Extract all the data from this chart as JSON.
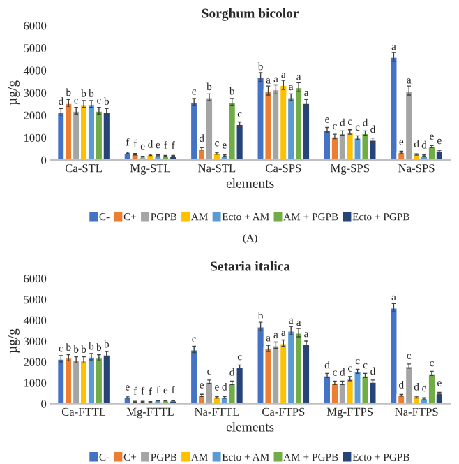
{
  "chart_data": [
    {
      "type": "bar",
      "title": "Sorghum bicolor",
      "xlabel": "elements",
      "ylabel": "µg/g",
      "categories": [
        "Ca-STL",
        "Mg-STL",
        "Na-STL",
        "Ca-SPS",
        "Mg-SPS",
        "Na-SPS"
      ],
      "ylim": [
        0,
        6000
      ],
      "yticks": [
        0,
        1000,
        2000,
        3000,
        4000,
        5000,
        6000
      ],
      "grid": false,
      "legend": "bottom",
      "annotations": [
        "(A)"
      ],
      "series": [
        {
          "name": "C-",
          "color": "#4472c4",
          "values": [
            2150,
            320,
            2600,
            3700,
            1350,
            4600
          ],
          "errors": [
            150,
            30,
            150,
            200,
            100,
            200
          ],
          "value_labels": [
            "d",
            "f",
            "c",
            "b",
            "e",
            "a"
          ]
        },
        {
          "name": "C+",
          "color": "#ed7d31",
          "values": [
            2550,
            260,
            500,
            3100,
            1050,
            350
          ],
          "errors": [
            150,
            30,
            50,
            200,
            100,
            40
          ],
          "value_labels": [
            "b",
            "f",
            "d",
            "a",
            "c",
            "e"
          ]
        },
        {
          "name": "PGPB",
          "color": "#a5a5a5",
          "values": [
            2200,
            150,
            2800,
            3150,
            1200,
            3100
          ],
          "errors": [
            150,
            20,
            150,
            200,
            100,
            200
          ],
          "value_labels": [
            "c",
            "e",
            "b",
            "a",
            "d",
            "a"
          ]
        },
        {
          "name": "AM",
          "color": "#ffc000",
          "values": [
            2500,
            230,
            300,
            3350,
            1250,
            250
          ],
          "errors": [
            150,
            30,
            40,
            200,
            100,
            30
          ],
          "value_labels": [
            "b",
            "d",
            "c",
            "a",
            "c",
            "d"
          ]
        },
        {
          "name": "Ecto + AM",
          "color": "#5b9bd5",
          "values": [
            2500,
            210,
            200,
            2800,
            1000,
            200
          ],
          "errors": [
            150,
            20,
            30,
            150,
            80,
            30
          ],
          "value_labels": [
            "b",
            "e",
            "e",
            "a",
            "c",
            "d"
          ]
        },
        {
          "name": "AM + PGPB",
          "color": "#70ad47",
          "values": [
            2200,
            190,
            2600,
            3250,
            1200,
            600
          ],
          "errors": [
            150,
            20,
            150,
            200,
            100,
            50
          ],
          "value_labels": [
            "c",
            "f",
            "b",
            "a",
            "d",
            "e"
          ]
        },
        {
          "name": "Ecto + PGPB",
          "color": "#264478",
          "values": [
            2150,
            190,
            1600,
            2550,
            900,
            400
          ],
          "errors": [
            150,
            20,
            100,
            150,
            80,
            40
          ],
          "value_labels": [
            "b",
            "f",
            "c",
            "a",
            "d",
            "e"
          ]
        }
      ]
    },
    {
      "type": "bar",
      "title": "Setaria italica",
      "xlabel": "elements",
      "ylabel": "µg/g",
      "categories": [
        "Ca-FTTL",
        "Mg-FTTL",
        "Na-FTTL",
        "Ca-FTPS",
        "Mg-FTPS",
        "Na-FTPS"
      ],
      "ylim": [
        0,
        6000
      ],
      "yticks": [
        0,
        1000,
        2000,
        3000,
        4000,
        5000,
        6000
      ],
      "grid": false,
      "legend": "bottom",
      "series": [
        {
          "name": "C-",
          "color": "#4472c4",
          "values": [
            2150,
            300,
            2600,
            3700,
            1350,
            4600
          ],
          "errors": [
            150,
            30,
            150,
            200,
            100,
            200
          ],
          "value_labels": [
            "c",
            "e",
            "c",
            "b",
            "d",
            "a"
          ]
        },
        {
          "name": "C+",
          "color": "#ed7d31",
          "values": [
            2200,
            100,
            400,
            2650,
            1000,
            400
          ],
          "errors": [
            150,
            20,
            50,
            150,
            80,
            40
          ],
          "value_labels": [
            "b",
            "f",
            "e",
            "a",
            "c",
            "d"
          ]
        },
        {
          "name": "PGPB",
          "color": "#a5a5a5",
          "values": [
            2100,
            100,
            1050,
            2800,
            1000,
            1800
          ],
          "errors": [
            150,
            20,
            80,
            150,
            80,
            100
          ],
          "value_labels": [
            "b",
            "f",
            "c",
            "a",
            "d",
            "c"
          ]
        },
        {
          "name": "AM",
          "color": "#ffc000",
          "values": [
            2100,
            80,
            300,
            2900,
            1200,
            300
          ],
          "errors": [
            150,
            20,
            40,
            150,
            100,
            30
          ],
          "value_labels": [
            "b",
            "f",
            "e",
            "a",
            "c",
            "d"
          ]
        },
        {
          "name": "Ecto + AM",
          "color": "#5b9bd5",
          "values": [
            2250,
            150,
            300,
            3500,
            1550,
            250
          ],
          "errors": [
            150,
            20,
            40,
            200,
            100,
            30
          ],
          "value_labels": [
            "b",
            "f",
            "d",
            "a",
            "c",
            "e"
          ]
        },
        {
          "name": "AM + PGPB",
          "color": "#70ad47",
          "values": [
            2200,
            150,
            1000,
            3400,
            1350,
            1450
          ],
          "errors": [
            150,
            20,
            80,
            200,
            100,
            100
          ],
          "value_labels": [
            "b",
            "e",
            "d",
            "a",
            "c",
            "c"
          ]
        },
        {
          "name": "Ecto + PGPB",
          "color": "#264478",
          "values": [
            2350,
            150,
            1750,
            2850,
            1050,
            500
          ],
          "errors": [
            150,
            20,
            100,
            150,
            80,
            40
          ],
          "value_labels": [
            "b",
            "f",
            "c",
            "a",
            "d",
            "e"
          ]
        }
      ]
    }
  ]
}
